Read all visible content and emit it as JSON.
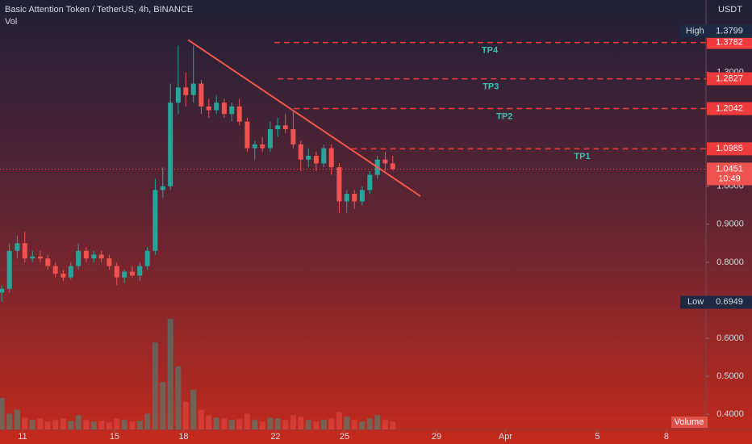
{
  "chart_data": {
    "type": "candlestick",
    "title": "Basic Attention Token / TetherUS, 4h, BINANCE",
    "indicator": "Vol",
    "currency": "USDT",
    "volume_label": "Volume",
    "up_color": "#26a69a",
    "down_color": "#ef5350",
    "x": [
      10.1,
      10.43,
      10.77,
      11.1,
      11.43,
      11.77,
      12.1,
      12.43,
      12.77,
      13.1,
      13.43,
      13.77,
      14.1,
      14.43,
      14.77,
      15.1,
      15.43,
      15.77,
      16.1,
      16.43,
      16.77,
      17.1,
      17.43,
      17.77,
      18.1,
      18.43,
      18.77,
      19.1,
      19.43,
      19.77,
      20.1,
      20.43,
      20.77,
      21.1,
      21.43,
      21.77,
      22.1,
      22.43,
      22.77,
      23.1,
      23.43,
      23.77,
      24.1,
      24.43,
      24.77,
      25.1,
      25.43,
      25.77,
      26.1,
      26.43,
      26.77,
      27.1
    ],
    "open": [
      0.72,
      0.73,
      0.83,
      0.85,
      0.81,
      0.815,
      0.81,
      0.79,
      0.77,
      0.76,
      0.79,
      0.83,
      0.81,
      0.82,
      0.81,
      0.79,
      0.76,
      0.775,
      0.765,
      0.79,
      0.83,
      0.99,
      1.0,
      1.22,
      1.26,
      1.24,
      1.27,
      1.21,
      1.2,
      1.22,
      1.19,
      1.21,
      1.17,
      1.1,
      1.11,
      1.1,
      1.15,
      1.16,
      1.15,
      1.11,
      1.07,
      1.08,
      1.06,
      1.1,
      1.05,
      0.96,
      0.98,
      0.96,
      0.99,
      1.03,
      1.07,
      1.06
    ],
    "high": [
      0.74,
      0.85,
      0.87,
      0.88,
      0.83,
      0.83,
      0.82,
      0.8,
      0.78,
      0.8,
      0.85,
      0.84,
      0.83,
      0.83,
      0.82,
      0.8,
      0.78,
      0.79,
      0.8,
      0.84,
      1.02,
      1.05,
      1.27,
      1.37,
      1.3,
      1.37,
      1.28,
      1.23,
      1.24,
      1.23,
      1.22,
      1.23,
      1.18,
      1.12,
      1.13,
      1.17,
      1.18,
      1.19,
      1.2,
      1.12,
      1.1,
      1.09,
      1.11,
      1.11,
      1.06,
      0.99,
      0.99,
      1.0,
      1.04,
      1.08,
      1.09,
      1.08
    ],
    "low": [
      0.695,
      0.72,
      0.81,
      0.8,
      0.8,
      0.8,
      0.78,
      0.76,
      0.75,
      0.755,
      0.78,
      0.8,
      0.8,
      0.8,
      0.78,
      0.74,
      0.745,
      0.76,
      0.75,
      0.78,
      0.82,
      0.97,
      0.99,
      1.19,
      1.21,
      1.22,
      1.19,
      1.18,
      1.19,
      1.18,
      1.17,
      1.16,
      1.09,
      1.07,
      1.09,
      1.09,
      1.13,
      1.14,
      1.1,
      1.04,
      1.05,
      1.04,
      1.05,
      1.03,
      0.93,
      0.93,
      0.94,
      0.95,
      0.98,
      1.02,
      1.04,
      1.04
    ],
    "close": [
      0.73,
      0.83,
      0.85,
      0.81,
      0.815,
      0.81,
      0.79,
      0.77,
      0.76,
      0.79,
      0.83,
      0.81,
      0.82,
      0.81,
      0.79,
      0.76,
      0.775,
      0.765,
      0.79,
      0.83,
      0.99,
      1.0,
      1.22,
      1.26,
      1.24,
      1.27,
      1.21,
      1.2,
      1.22,
      1.19,
      1.21,
      1.17,
      1.1,
      1.11,
      1.1,
      1.15,
      1.16,
      1.15,
      1.11,
      1.07,
      1.08,
      1.06,
      1.1,
      1.05,
      0.96,
      0.98,
      0.96,
      0.99,
      1.03,
      1.07,
      1.06,
      1.0451
    ],
    "volume": [
      40,
      20,
      25,
      15,
      12,
      14,
      10,
      12,
      14,
      11,
      18,
      12,
      10,
      11,
      9,
      14,
      12,
      10,
      11,
      20,
      110,
      60,
      140,
      80,
      35,
      50,
      25,
      18,
      15,
      14,
      12,
      13,
      20,
      12,
      10,
      15,
      14,
      12,
      18,
      16,
      12,
      10,
      12,
      14,
      22,
      16,
      12,
      10,
      14,
      18,
      12,
      10
    ],
    "xlim": [
      10.02,
      40.72
    ],
    "ylim": [
      0.36,
      1.49
    ],
    "xticks": [
      11,
      15,
      18,
      22,
      25,
      29,
      {
        "value": 32,
        "label": "Apr"
      },
      5,
      8
    ],
    "yticks": [
      {
        "value": 0.4,
        "label": "0.4000"
      },
      {
        "value": 0.5,
        "label": "0.5000"
      },
      {
        "value": 0.6,
        "label": "0.6000"
      },
      {
        "value": 0.8,
        "label": "0.8000"
      },
      {
        "value": 0.9,
        "label": "0.9000"
      },
      {
        "value": 1.0,
        "label": "1.0000"
      },
      {
        "value": 1.3,
        "label": "1.3000"
      }
    ],
    "levels": [
      {
        "label": "TP4",
        "value": 1.3782,
        "from": 21.95
      },
      {
        "label": "TP3",
        "value": 1.2827,
        "from": 22.1
      },
      {
        "label": "TP2",
        "value": 1.2042,
        "from": 22.8
      },
      {
        "label": "TP1",
        "value": 1.0985,
        "from": 25.3
      }
    ],
    "level_color": "#ef3b3b",
    "last": {
      "value": 1.0451,
      "countdown": "10:49"
    },
    "high_marker": {
      "label": "High",
      "value": 1.3799
    },
    "low_marker": {
      "label": "Low",
      "value": 0.6949
    },
    "trendline": {
      "x": [
        18.2,
        28.3
      ],
      "y": [
        1.385,
        0.974
      ],
      "color": "#f0584a"
    }
  }
}
